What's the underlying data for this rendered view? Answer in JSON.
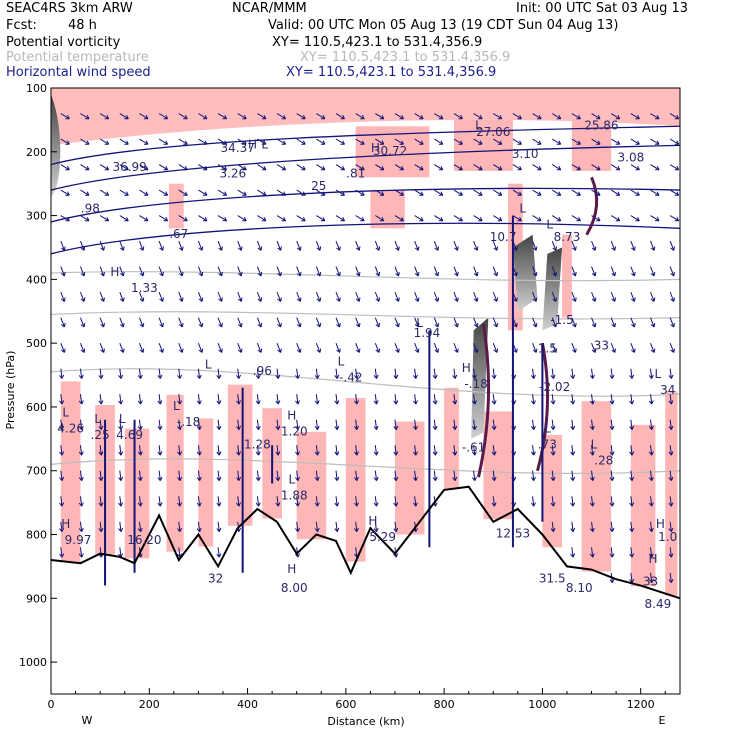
{
  "header": {
    "model": "SEAC4RS  3km ARW",
    "org": "NCAR/MMM",
    "init": "Init: 00 UTC Sat 03 Aug 13",
    "fcst_label": "Fcst:",
    "fcst_value": "48 h",
    "valid": "Valid: 00 UTC Mon 05 Aug 13 (19 CDT Sun 04 Aug 13)",
    "fields": [
      {
        "name": "Potential vorticity",
        "xy": "XY= 110.5,423.1 to 531.4,356.9"
      },
      {
        "name": "Potential temperature",
        "xy": "XY= 110.5,423.1 to 531.4,356.9"
      },
      {
        "name": "Horizontal wind speed",
        "xy": "XY= 110.5,423.1 to 531.4,356.9"
      }
    ]
  },
  "colors": {
    "pv_shade": "#ffb6b6",
    "pv_dark": "#5a1a4a",
    "theta": "#bdbdbd",
    "wind": "#13137a",
    "terrain": "#000000"
  },
  "chart_data": {
    "type": "cross-section",
    "xlabel": "Distance (km)",
    "ylabel": "Pressure (hPa)",
    "xlim": [
      0,
      1280
    ],
    "ylim": [
      1050,
      100
    ],
    "x_ticks": [
      "0",
      "200",
      "400",
      "600",
      "800",
      "1000",
      "1200"
    ],
    "y_ticks": [
      "100",
      "200",
      "300",
      "400",
      "500",
      "600",
      "700",
      "800",
      "900",
      "1000"
    ],
    "endpoints": {
      "left": "W",
      "right": "E"
    },
    "terrain_surface": [
      {
        "x": 0,
        "p": 840
      },
      {
        "x": 60,
        "p": 845
      },
      {
        "x": 100,
        "p": 830
      },
      {
        "x": 140,
        "p": 835
      },
      {
        "x": 170,
        "p": 845
      },
      {
        "x": 220,
        "p": 770
      },
      {
        "x": 260,
        "p": 840
      },
      {
        "x": 300,
        "p": 800
      },
      {
        "x": 340,
        "p": 850
      },
      {
        "x": 380,
        "p": 790
      },
      {
        "x": 420,
        "p": 760
      },
      {
        "x": 460,
        "p": 780
      },
      {
        "x": 500,
        "p": 830
      },
      {
        "x": 540,
        "p": 800
      },
      {
        "x": 580,
        "p": 810
      },
      {
        "x": 610,
        "p": 860
      },
      {
        "x": 650,
        "p": 790
      },
      {
        "x": 700,
        "p": 830
      },
      {
        "x": 750,
        "p": 780
      },
      {
        "x": 800,
        "p": 730
      },
      {
        "x": 850,
        "p": 725
      },
      {
        "x": 900,
        "p": 780
      },
      {
        "x": 950,
        "p": 760
      },
      {
        "x": 1000,
        "p": 800
      },
      {
        "x": 1050,
        "p": 850
      },
      {
        "x": 1100,
        "p": 855
      },
      {
        "x": 1150,
        "p": 870
      },
      {
        "x": 1200,
        "p": 880
      },
      {
        "x": 1280,
        "p": 900
      }
    ],
    "contour_labels": [
      {
        "text": "36.99",
        "x": 160,
        "p": 230
      },
      {
        "text": "34.37",
        "x": 380,
        "p": 200
      },
      {
        "text": "30.72",
        "x": 690,
        "p": 205
      },
      {
        "text": "27.06",
        "x": 900,
        "p": 175
      },
      {
        "text": "25.86",
        "x": 1120,
        "p": 165
      },
      {
        "text": "3.08",
        "x": 1180,
        "p": 215
      },
      {
        "text": "3.10",
        "x": 965,
        "p": 210
      },
      {
        "text": "3.26",
        "x": 370,
        "p": 240
      },
      {
        "text": "25",
        "x": 545,
        "p": 260
      },
      {
        "text": ".81",
        "x": 620,
        "p": 240
      },
      {
        "text": ".98",
        "x": 80,
        "p": 295
      },
      {
        "text": ".67",
        "x": 260,
        "p": 335
      },
      {
        "text": "1.33",
        "x": 190,
        "p": 420
      },
      {
        "text": "10.7",
        "x": 920,
        "p": 340
      },
      {
        "text": "8.73",
        "x": 1050,
        "p": 340
      },
      {
        "text": "1.94",
        "x": 765,
        "p": 490
      },
      {
        "text": ".96",
        "x": 430,
        "p": 550
      },
      {
        "text": "-.42",
        "x": 610,
        "p": 560
      },
      {
        "text": "4.26",
        "x": 40,
        "p": 640
      },
      {
        "text": ".25",
        "x": 100,
        "p": 650
      },
      {
        "text": "4.69",
        "x": 160,
        "p": 650
      },
      {
        "text": "-.18",
        "x": 280,
        "p": 630
      },
      {
        "text": "1.28",
        "x": 420,
        "p": 665
      },
      {
        "text": "1.20",
        "x": 495,
        "p": 645
      },
      {
        "text": "1.88",
        "x": 495,
        "p": 745
      },
      {
        "text": "5.29",
        "x": 675,
        "p": 810
      },
      {
        "text": "9.97",
        "x": 55,
        "p": 815
      },
      {
        "text": "16.20",
        "x": 190,
        "p": 815
      },
      {
        "text": "8.00",
        "x": 495,
        "p": 890
      },
      {
        "text": "-.61",
        "x": 860,
        "p": 670
      },
      {
        "text": "-.18",
        "x": 865,
        "p": 570
      },
      {
        "text": "-2.02",
        "x": 1025,
        "p": 575
      },
      {
        "text": "-1.5",
        "x": 1040,
        "p": 470
      },
      {
        "text": ".73",
        "x": 1010,
        "p": 665
      },
      {
        "text": ".28",
        "x": 1125,
        "p": 690
      },
      {
        "text": "12.53",
        "x": 940,
        "p": 805
      },
      {
        "text": "31.5",
        "x": 1020,
        "p": 875
      },
      {
        "text": "8.10",
        "x": 1075,
        "p": 890
      },
      {
        "text": "8.49",
        "x": 1235,
        "p": 915
      },
      {
        "text": "1.5",
        "x": 1010,
        "p": 515
      },
      {
        "text": "33",
        "x": 1120,
        "p": 510
      },
      {
        "text": "34",
        "x": 1255,
        "p": 580
      },
      {
        "text": "32",
        "x": 335,
        "p": 875
      },
      {
        "text": "1.0",
        "x": 1255,
        "p": 810
      },
      {
        "text": "33",
        "x": 1220,
        "p": 880
      }
    ],
    "center_markers": [
      {
        "text": "H",
        "x": 130,
        "p": 395
      },
      {
        "text": "L",
        "x": 320,
        "p": 540
      },
      {
        "text": "L",
        "x": 590,
        "p": 535
      },
      {
        "text": "L",
        "x": 750,
        "p": 475
      },
      {
        "text": "L",
        "x": 30,
        "p": 615
      },
      {
        "text": "L",
        "x": 95,
        "p": 625
      },
      {
        "text": "L",
        "x": 145,
        "p": 625
      },
      {
        "text": "L",
        "x": 255,
        "p": 605
      },
      {
        "text": "H",
        "x": 490,
        "p": 620
      },
      {
        "text": "L",
        "x": 490,
        "p": 720
      },
      {
        "text": "H",
        "x": 30,
        "p": 790
      },
      {
        "text": "H",
        "x": 655,
        "p": 785
      },
      {
        "text": "H",
        "x": 490,
        "p": 860
      },
      {
        "text": "H",
        "x": 845,
        "p": 545
      },
      {
        "text": "L",
        "x": 1010,
        "p": 640
      },
      {
        "text": "L",
        "x": 1105,
        "p": 665
      },
      {
        "text": "L",
        "x": 1235,
        "p": 555
      },
      {
        "text": "H",
        "x": 1240,
        "p": 790
      },
      {
        "text": "H",
        "x": 410,
        "p": 195
      },
      {
        "text": "L",
        "x": 435,
        "p": 195
      },
      {
        "text": "H",
        "x": 660,
        "p": 200
      },
      {
        "text": "L",
        "x": 870,
        "p": 165
      },
      {
        "text": "L",
        "x": 960,
        "p": 295
      },
      {
        "text": "L",
        "x": 1015,
        "p": 320
      },
      {
        "text": "H",
        "x": 1225,
        "p": 845
      }
    ]
  }
}
